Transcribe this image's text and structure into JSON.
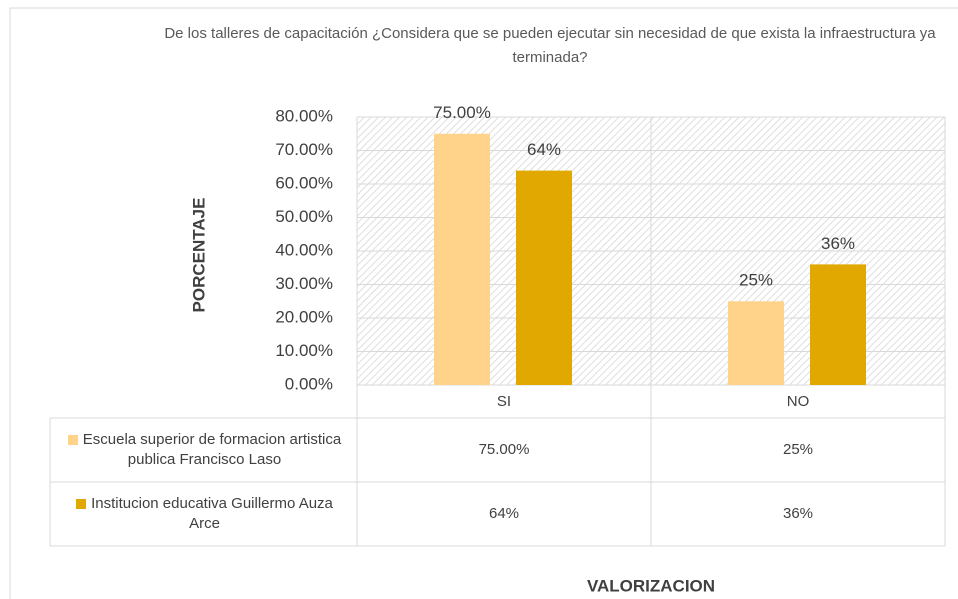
{
  "chart_data": {
    "type": "bar",
    "title": "De los talleres de capacitación ¿Considera que  se pueden ejecutar sin necesidad de que exista la infraestructura ya terminada?",
    "y_label": "PORCENTAJE",
    "x_label": "VALORIZACION",
    "categories": [
      "SI",
      "NO"
    ],
    "series": [
      {
        "name": "Escuela superior de formacion artistica publica Francisco Laso",
        "color": "#ffd38a",
        "values": [
          75,
          25
        ],
        "value_labels": [
          "75.00%",
          "25%"
        ]
      },
      {
        "name": "Institucion educativa Guillermo Auza Arce",
        "color": "#e0a800",
        "values": [
          64,
          36
        ],
        "value_labels": [
          "64%",
          "36%"
        ]
      }
    ],
    "ylim": [
      0,
      80
    ],
    "yticks": [
      {
        "value": 0,
        "label": "0.00%"
      },
      {
        "value": 10,
        "label": "10.00%"
      },
      {
        "value": 20,
        "label": "20.00%"
      },
      {
        "value": 30,
        "label": "30.00%"
      },
      {
        "value": 40,
        "label": "40.00%"
      },
      {
        "value": 50,
        "label": "50.00%"
      },
      {
        "value": 60,
        "label": "60.00%"
      },
      {
        "value": 70,
        "label": "70.00%"
      },
      {
        "value": 80,
        "label": "80.00%"
      }
    ],
    "grid": true,
    "data_table": true
  }
}
